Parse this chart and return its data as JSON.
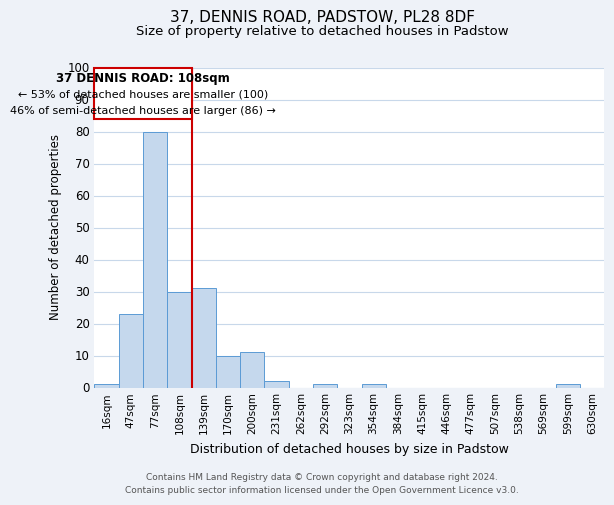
{
  "title": "37, DENNIS ROAD, PADSTOW, PL28 8DF",
  "subtitle": "Size of property relative to detached houses in Padstow",
  "xlabel": "Distribution of detached houses by size in Padstow",
  "ylabel": "Number of detached properties",
  "bar_labels": [
    "16sqm",
    "47sqm",
    "77sqm",
    "108sqm",
    "139sqm",
    "170sqm",
    "200sqm",
    "231sqm",
    "262sqm",
    "292sqm",
    "323sqm",
    "354sqm",
    "384sqm",
    "415sqm",
    "446sqm",
    "477sqm",
    "507sqm",
    "538sqm",
    "569sqm",
    "599sqm",
    "630sqm"
  ],
  "bar_values": [
    1,
    23,
    80,
    30,
    31,
    10,
    11,
    2,
    0,
    1,
    0,
    1,
    0,
    0,
    0,
    0,
    0,
    0,
    0,
    1,
    0
  ],
  "bar_color": "#c5d8ed",
  "bar_edge_color": "#5b9bd5",
  "vline_index": 3,
  "vline_color": "#cc0000",
  "ylim": [
    0,
    100
  ],
  "annotation_title": "37 DENNIS ROAD: 108sqm",
  "annotation_line1": "← 53% of detached houses are smaller (100)",
  "annotation_line2": "46% of semi-detached houses are larger (86) →",
  "footer_line1": "Contains HM Land Registry data © Crown copyright and database right 2024.",
  "footer_line2": "Contains public sector information licensed under the Open Government Licence v3.0.",
  "bg_color": "#eef2f8",
  "plot_bg_color": "#ffffff",
  "grid_color": "#c8d8ea",
  "title_fontsize": 11,
  "subtitle_fontsize": 9.5,
  "annotation_box_color": "#ffffff",
  "annotation_box_edge": "#cc0000",
  "footer_fontsize": 6.5,
  "ylabel_fontsize": 8.5,
  "xlabel_fontsize": 9
}
